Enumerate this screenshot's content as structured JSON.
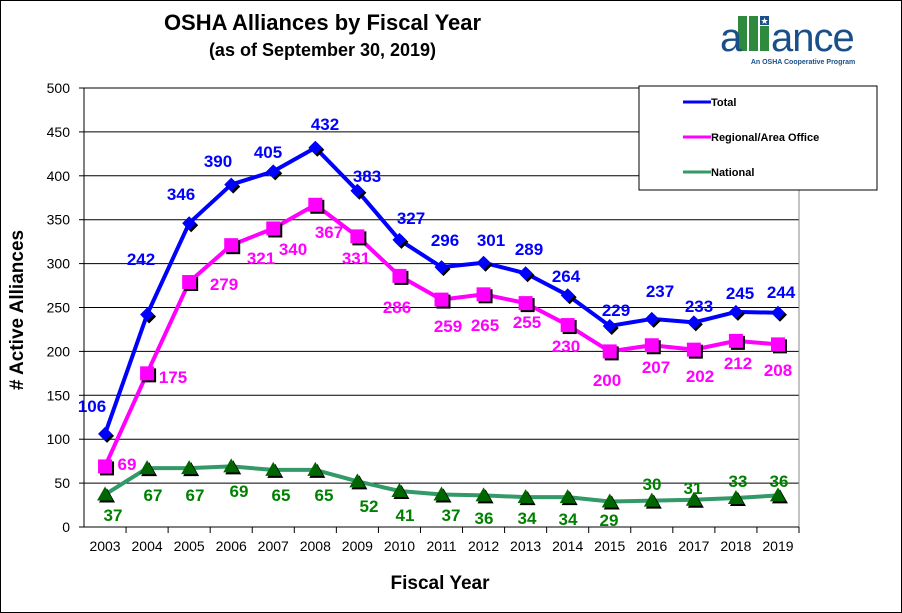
{
  "chart_data": {
    "type": "line",
    "title": "OSHA Alliances by Fiscal Year",
    "subtitle": "(as of September 30, 2019)",
    "xlabel": "Fiscal Year",
    "ylabel": "# Active Alliances",
    "ylim": [
      0,
      500
    ],
    "yticks": [
      0,
      50,
      100,
      150,
      200,
      250,
      300,
      350,
      400,
      450,
      500
    ],
    "grid": true,
    "legend_position": "top-right",
    "categories": [
      "2003",
      "2004",
      "2005",
      "2006",
      "2007",
      "2008",
      "2009",
      "2010",
      "2011",
      "2012",
      "2013",
      "2014",
      "2015",
      "2016",
      "2017",
      "2018",
      "2019"
    ],
    "series": [
      {
        "name": "Total",
        "color": "#0000FF",
        "marker": "diamond",
        "values": [
          106,
          242,
          346,
          390,
          405,
          432,
          383,
          327,
          296,
          301,
          289,
          264,
          229,
          237,
          233,
          245,
          244
        ]
      },
      {
        "name": "Regional/Area Office",
        "color": "#FF00FF",
        "marker": "square",
        "values": [
          69,
          175,
          279,
          321,
          340,
          367,
          331,
          286,
          259,
          265,
          255,
          230,
          200,
          207,
          202,
          212,
          208
        ]
      },
      {
        "name": "National",
        "color": "#339966",
        "label_color": "#008000",
        "marker": "triangle",
        "values": [
          37,
          67,
          67,
          69,
          65,
          65,
          52,
          41,
          37,
          36,
          34,
          34,
          29,
          30,
          31,
          33,
          36
        ]
      }
    ]
  },
  "logo": {
    "text": "alliance",
    "tagline": "An OSHA Cooperative Program"
  }
}
